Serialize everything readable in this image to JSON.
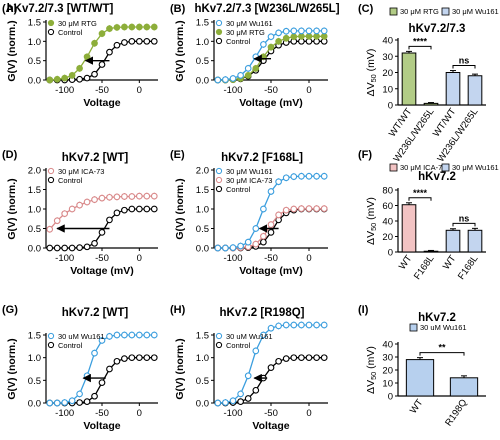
{
  "colors": {
    "gv_green": "#8dae3a",
    "gv_blue": "#3b9ede",
    "gv_pink": "#d9898a",
    "bar_green": "#b2cc86",
    "bar_blue": "#c3d5ef",
    "bar_pink": "#f2c3c3",
    "bar_blue2": "#b7d0ee",
    "axis": "#000000",
    "control_marker": "#000000"
  },
  "chart_data": [
    {
      "panel": "(A)",
      "type": "line",
      "title": "hKv7.2/7.3 [WT/WT]",
      "xlabel": "Voltage",
      "ylabel": "G(V) (norm.)",
      "xlim": [
        -125,
        25
      ],
      "ylim": [
        0,
        1.5
      ],
      "xticks": [
        "-100",
        "-50",
        "0"
      ],
      "yticks": [
        "0.0",
        "0.5",
        "1.0",
        "1.5"
      ],
      "legend_position": "top-left",
      "arrow": {
        "from": [
          -40,
          0.5
        ],
        "to": [
          -72,
          0.5
        ]
      },
      "x": [
        -120,
        -110,
        -100,
        -90,
        -80,
        -70,
        -60,
        -50,
        -40,
        -30,
        -20,
        -10,
        0,
        10,
        20
      ],
      "series": [
        {
          "name": "30 μM RTG",
          "marker": "filled",
          "color_key": "gv_green",
          "values": [
            0.0,
            0.02,
            0.05,
            0.12,
            0.3,
            0.6,
            0.95,
            1.2,
            1.33,
            1.36,
            1.37,
            1.37,
            1.37,
            1.37,
            1.37
          ]
        },
        {
          "name": "Control",
          "marker": "open",
          "color_key": "control_marker",
          "values": [
            0.0,
            0.0,
            0.0,
            0.01,
            0.02,
            0.05,
            0.15,
            0.4,
            0.72,
            0.9,
            0.97,
            1.0,
            1.0,
            1.0,
            1.0
          ]
        }
      ]
    },
    {
      "panel": "(B)",
      "type": "line",
      "title": "hKv7.2/7.3 [W236L/W265L]",
      "xlabel": "Voltage (mV)",
      "ylabel": "G(V) (norm.)",
      "xlim": [
        -125,
        25
      ],
      "ylim": [
        0,
        1.5
      ],
      "xticks": [
        "-100",
        "-50",
        "0"
      ],
      "yticks": [
        "0.0",
        "0.5",
        "1.0",
        "1.5"
      ],
      "legend_position": "top-left",
      "arrow": {
        "from": [
          -50,
          0.55
        ],
        "to": [
          -72,
          0.55
        ]
      },
      "x": [
        -120,
        -110,
        -100,
        -90,
        -80,
        -70,
        -60,
        -50,
        -40,
        -30,
        -20,
        -10,
        0,
        10,
        20
      ],
      "series": [
        {
          "name": "30 μM Wu161",
          "marker": "open",
          "color_key": "gv_blue",
          "values": [
            0.0,
            0.01,
            0.04,
            0.12,
            0.3,
            0.6,
            0.92,
            1.12,
            1.22,
            1.26,
            1.27,
            1.27,
            1.27,
            1.27,
            1.27
          ]
        },
        {
          "name": "30 μM RTG",
          "marker": "filled",
          "color_key": "gv_green",
          "values": [
            0.0,
            0.0,
            0.01,
            0.04,
            0.12,
            0.3,
            0.6,
            0.85,
            1.0,
            1.08,
            1.12,
            1.13,
            1.13,
            1.13,
            1.13
          ]
        },
        {
          "name": "Control",
          "marker": "open",
          "color_key": "control_marker",
          "values": [
            0.0,
            0.0,
            0.01,
            0.03,
            0.1,
            0.25,
            0.5,
            0.75,
            0.9,
            0.97,
            1.0,
            1.0,
            1.0,
            1.0,
            1.0
          ]
        }
      ]
    },
    {
      "panel": "(C)",
      "type": "bar",
      "title": "hKv7.2/7.3",
      "ylabel": "ΔV50 (mV)",
      "ylim": [
        0,
        40
      ],
      "yticks": [
        "0",
        "10",
        "20",
        "30",
        "40"
      ],
      "categories": [
        "WT/WT",
        "W236L/W265L",
        "WT/WT",
        "W236L/W265L"
      ],
      "legend_position": "top",
      "legend": [
        "30 μM RTG",
        "30 μM Wu161"
      ],
      "values": [
        32,
        1,
        20,
        18
      ],
      "errors": [
        1,
        0.5,
        1.2,
        1
      ],
      "bar_color_keys": [
        "bar_green",
        "bar_green",
        "bar_blue",
        "bar_blue"
      ],
      "significance": [
        {
          "between": [
            0,
            1
          ],
          "label": "****"
        },
        {
          "between": [
            2,
            3
          ],
          "label": "ns"
        }
      ]
    },
    {
      "panel": "(D)",
      "type": "line",
      "title": "hKv7.2 [WT]",
      "xlabel": "Voltage (mV)",
      "ylabel": "G(V) (norm.)",
      "xlim": [
        -125,
        25
      ],
      "ylim": [
        0,
        2.0
      ],
      "xticks": [
        "-100",
        "-50",
        "0"
      ],
      "yticks": [
        "0.0",
        "0.5",
        "1.0",
        "1.5",
        "2.0"
      ],
      "legend_position": "top-left",
      "arrow": {
        "from": [
          -40,
          0.5
        ],
        "to": [
          -110,
          0.5
        ]
      },
      "x": [
        -120,
        -110,
        -100,
        -90,
        -80,
        -70,
        -60,
        -50,
        -40,
        -30,
        -20,
        -10,
        0,
        10,
        20
      ],
      "series": [
        {
          "name": "30 μM ICA-73",
          "marker": "open",
          "color_key": "gv_pink",
          "values": [
            0.48,
            0.7,
            0.88,
            1.0,
            1.1,
            1.18,
            1.24,
            1.28,
            1.3,
            1.31,
            1.32,
            1.32,
            1.33,
            1.33,
            1.33
          ]
        },
        {
          "name": "Control",
          "marker": "open",
          "color_key": "control_marker",
          "values": [
            0.0,
            0.0,
            0.0,
            0.0,
            0.01,
            0.03,
            0.12,
            0.4,
            0.72,
            0.9,
            0.97,
            1.0,
            1.0,
            1.0,
            1.0
          ]
        }
      ]
    },
    {
      "panel": "(E)",
      "type": "line",
      "title": "hKv7.2 [F168L]",
      "xlabel": "Voltage (mV)",
      "ylabel": "G(V) (norm.)",
      "xlim": [
        -125,
        25
      ],
      "ylim": [
        0,
        2.0
      ],
      "xticks": [
        "-100",
        "-50",
        "0"
      ],
      "yticks": [
        "0.0",
        "0.5",
        "1.0",
        "1.5",
        "2.0"
      ],
      "legend_position": "top-left",
      "arrow": {
        "from": [
          -40,
          0.5
        ],
        "to": [
          -65,
          0.5
        ]
      },
      "x": [
        -120,
        -110,
        -100,
        -90,
        -80,
        -70,
        -60,
        -50,
        -40,
        -30,
        -20,
        -10,
        0,
        10,
        20
      ],
      "series": [
        {
          "name": "30 μM Wu161",
          "marker": "open",
          "color_key": "gv_blue",
          "values": [
            0.0,
            0.0,
            0.01,
            0.05,
            0.15,
            0.5,
            1.0,
            1.45,
            1.7,
            1.8,
            1.83,
            1.84,
            1.84,
            1.84,
            1.84
          ]
        },
        {
          "name": "30 μM ICA-73",
          "marker": "open",
          "color_key": "gv_pink",
          "values": [
            0.0,
            0.0,
            0.0,
            0.01,
            0.03,
            0.1,
            0.3,
            0.6,
            0.85,
            0.97,
            1.0,
            1.01,
            1.01,
            1.01,
            1.01
          ]
        },
        {
          "name": "Control",
          "marker": "open",
          "color_key": "control_marker",
          "values": [
            0.0,
            0.0,
            0.0,
            0.0,
            0.01,
            0.04,
            0.15,
            0.4,
            0.72,
            0.9,
            0.97,
            1.0,
            1.0,
            1.0,
            1.0
          ]
        }
      ]
    },
    {
      "panel": "(F)",
      "type": "bar",
      "title": "hKv7.2",
      "ylabel": "ΔV50 (mV)",
      "ylim": [
        0,
        80
      ],
      "yticks": [
        "0",
        "20",
        "40",
        "60",
        "80"
      ],
      "categories": [
        "WT",
        "F168L",
        "WT",
        "F168L"
      ],
      "legend_position": "top",
      "legend": [
        "30 μM ICA-73",
        "30 μM Wu161"
      ],
      "values": [
        61,
        1,
        28,
        28
      ],
      "errors": [
        2.5,
        1,
        2,
        2.5
      ],
      "bar_color_keys": [
        "bar_pink",
        "bar_pink",
        "bar_blue",
        "bar_blue"
      ],
      "significance": [
        {
          "between": [
            0,
            1
          ],
          "label": "****"
        },
        {
          "between": [
            2,
            3
          ],
          "label": "ns"
        }
      ]
    },
    {
      "panel": "(G)",
      "type": "line",
      "title": "hKv7.2 [WT]",
      "xlabel": "Voltage",
      "ylabel": "G(V) (norm.)",
      "xlim": [
        -125,
        25
      ],
      "ylim": [
        0,
        1.5
      ],
      "xticks": [
        "-100",
        "-50",
        "0"
      ],
      "yticks": [
        "0.0",
        "0.5",
        "1.0",
        "1.5"
      ],
      "legend_position": "top-left",
      "arrow": {
        "from": [
          -45,
          0.55
        ],
        "to": [
          -75,
          0.55
        ]
      },
      "x": [
        -120,
        -110,
        -100,
        -90,
        -80,
        -70,
        -60,
        -50,
        -40,
        -30,
        -20,
        -10,
        0,
        10,
        20
      ],
      "series": [
        {
          "name": "30 uM Wu161",
          "marker": "open",
          "color_key": "gv_blue",
          "values": [
            0.0,
            0.0,
            0.01,
            0.05,
            0.2,
            0.6,
            1.1,
            1.38,
            1.47,
            1.5,
            1.5,
            1.5,
            1.5,
            1.5,
            1.5
          ]
        },
        {
          "name": "Control",
          "marker": "open",
          "color_key": "control_marker",
          "values": [
            0.0,
            0.0,
            0.0,
            0.0,
            0.01,
            0.03,
            0.15,
            0.45,
            0.75,
            0.92,
            0.98,
            1.0,
            1.0,
            1.0,
            1.0
          ]
        }
      ]
    },
    {
      "panel": "(H)",
      "type": "line",
      "title": "hKv7.2 [R198Q]",
      "xlabel": "Voltage",
      "ylabel": "G(V) (norm.)",
      "xlim": [
        -125,
        25
      ],
      "ylim": [
        0,
        1.5
      ],
      "xticks": [
        "-100",
        "-50",
        "0"
      ],
      "yticks": [
        "0.0",
        "0.5",
        "1.0",
        "1.5"
      ],
      "legend_position": "top-left",
      "arrow": {
        "from": [
          -55,
          0.55
        ],
        "to": [
          -72,
          0.55
        ]
      },
      "x": [
        -120,
        -110,
        -100,
        -90,
        -80,
        -70,
        -60,
        -50,
        -40,
        -30,
        -20,
        -10,
        0,
        10,
        20
      ],
      "series": [
        {
          "name": "30 uM Wu161",
          "marker": "open",
          "color_key": "gv_blue",
          "values": [
            0.0,
            0.01,
            0.05,
            0.2,
            0.6,
            1.15,
            1.5,
            1.65,
            1.7,
            1.72,
            1.72,
            1.72,
            1.72,
            1.72,
            1.72
          ]
        },
        {
          "name": "Control",
          "marker": "open",
          "color_key": "control_marker",
          "values": [
            0.0,
            0.0,
            0.01,
            0.03,
            0.1,
            0.28,
            0.55,
            0.78,
            0.92,
            0.98,
            1.0,
            1.0,
            1.0,
            1.0,
            1.0
          ]
        }
      ]
    },
    {
      "panel": "(I)",
      "type": "bar",
      "title": "hKv7.2",
      "ylabel": "ΔV50 (mV)",
      "ylim": [
        0,
        40
      ],
      "yticks": [
        "0",
        "10",
        "20",
        "30",
        "40"
      ],
      "categories": [
        "WT",
        "R198Q"
      ],
      "legend_position": "top",
      "legend": [
        "30 uM Wu161"
      ],
      "values": [
        28,
        14
      ],
      "errors": [
        1.5,
        1.5
      ],
      "bar_color_keys": [
        "bar_blue2",
        "bar_blue2"
      ],
      "significance": [
        {
          "between": [
            0,
            1
          ],
          "label": "**"
        }
      ]
    }
  ]
}
